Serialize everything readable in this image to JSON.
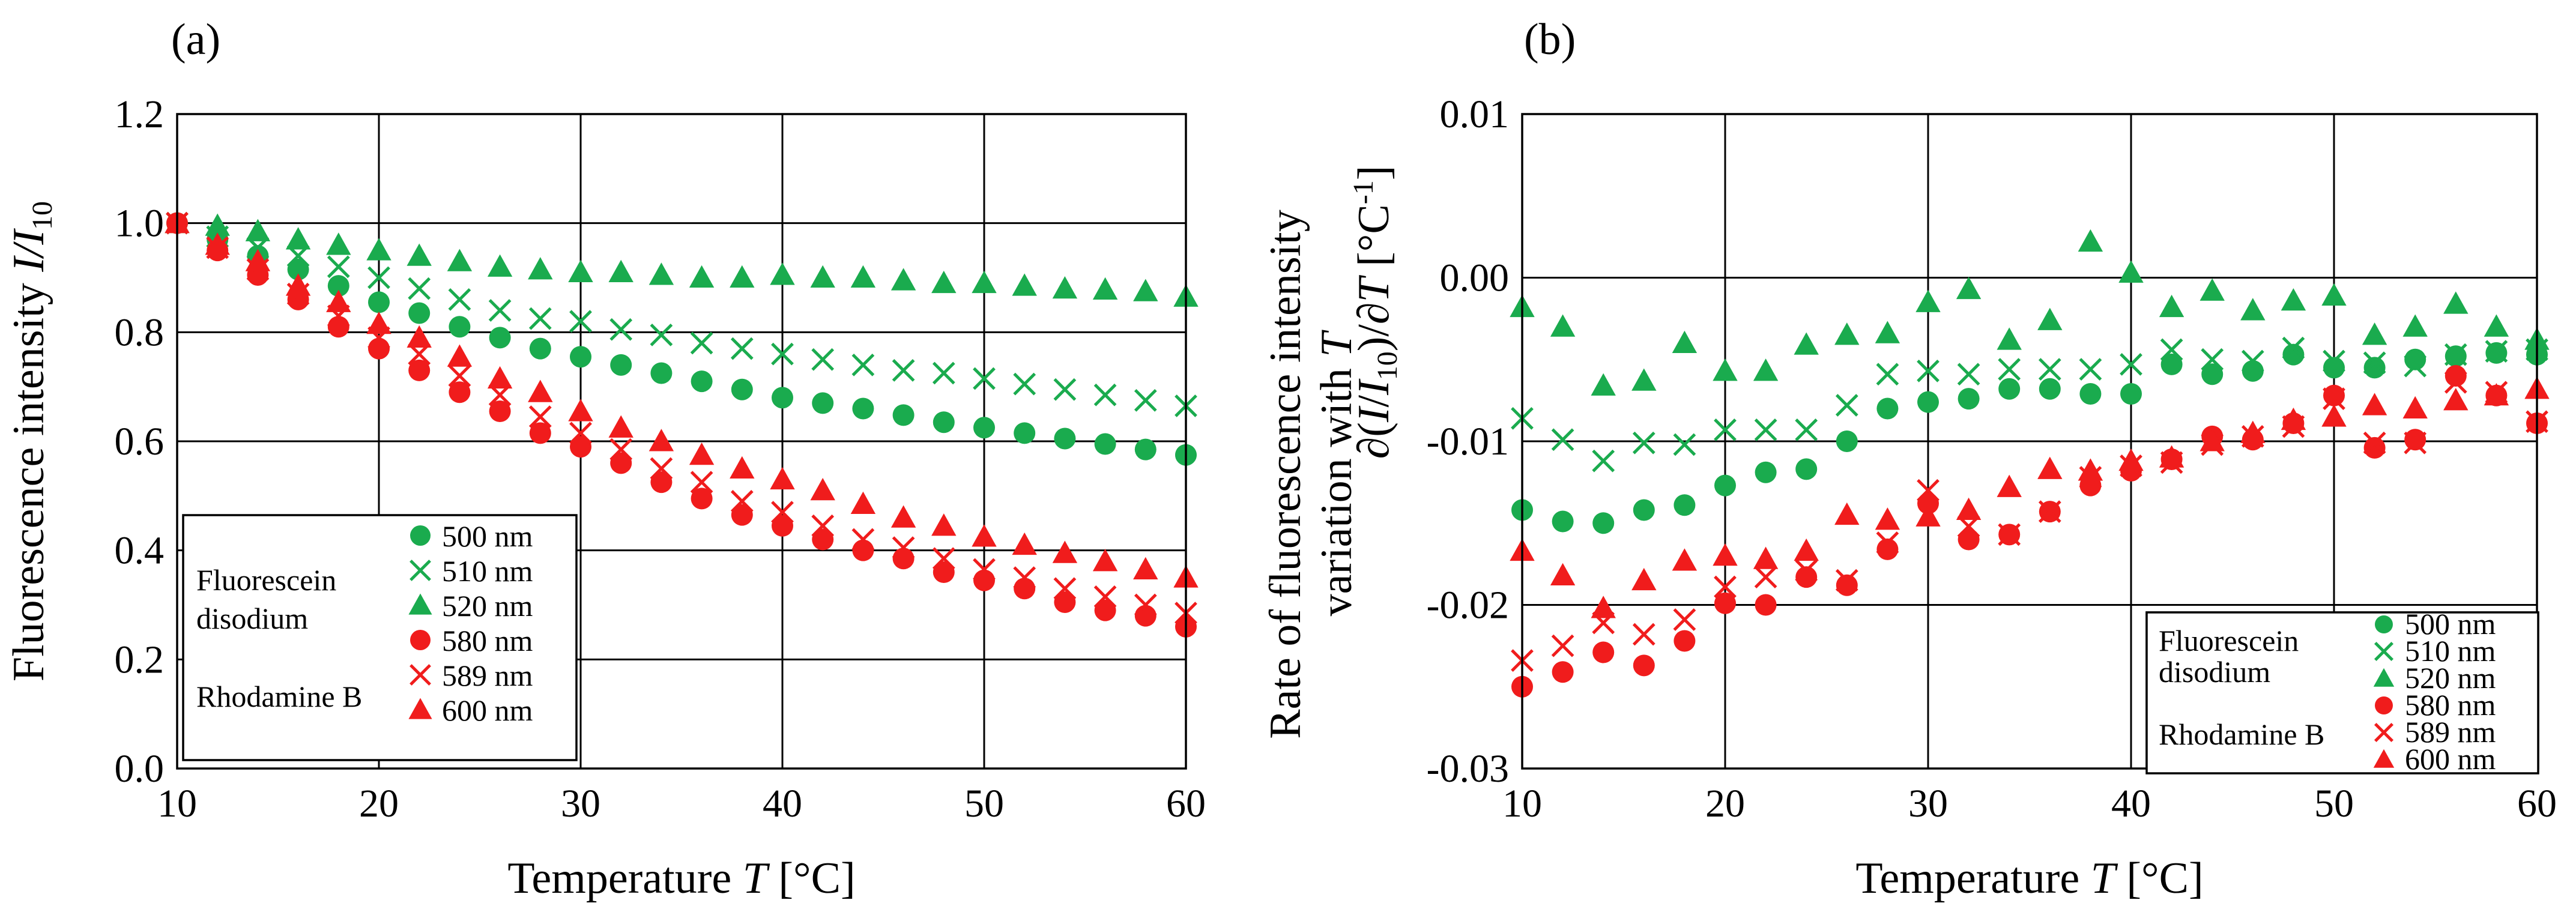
{
  "colors": {
    "fluorescein": "#1aab4e",
    "rhodamine": "#f01c1c",
    "grid": "#000000",
    "axis": "#000000"
  },
  "chart_data": [
    {
      "type": "scatter",
      "panel_label": "(a)",
      "xlabel": "Temperature",
      "xsym": "T",
      "xunit": "[°C]",
      "ylabel": "Fluorescence intensity",
      "ysym": "I/I",
      "ysub": "10",
      "xlim": [
        10,
        60
      ],
      "ylim": [
        0,
        1.2
      ],
      "xticks": [
        "10",
        "20",
        "30",
        "40",
        "50",
        "60"
      ],
      "yticks": [
        "0.0",
        "0.2",
        "0.4",
        "0.6",
        "0.8",
        "1.0",
        "1.2"
      ],
      "legend": {
        "position": "bottom-left",
        "groups": [
          {
            "name": "Fluorescein disodium",
            "lines": [
              "Fluorescein",
              "disodium"
            ]
          },
          {
            "name": "Rhodamine B",
            "lines": [
              "Rhodamine B"
            ]
          }
        ],
        "entries": [
          "500 nm",
          "510 nm",
          "520 nm",
          "580 nm",
          "589 nm",
          "600 nm"
        ]
      },
      "x": [
        10,
        12,
        14,
        16,
        18,
        20,
        22,
        24,
        26,
        28,
        30,
        32,
        34,
        36,
        38,
        40,
        42,
        44,
        46,
        48,
        50,
        52,
        54,
        56,
        58,
        60
      ],
      "series": [
        {
          "name": "500 nm",
          "group": "Fluorescein disodium",
          "marker": "circle",
          "color": "#1aab4e",
          "values": [
            1.0,
            0.97,
            0.94,
            0.915,
            0.885,
            0.855,
            0.835,
            0.81,
            0.79,
            0.77,
            0.755,
            0.74,
            0.725,
            0.71,
            0.695,
            0.68,
            0.67,
            0.66,
            0.648,
            0.635,
            0.625,
            0.615,
            0.605,
            0.595,
            0.585,
            0.575
          ]
        },
        {
          "name": "510 nm",
          "group": "Fluorescein disodium",
          "marker": "x",
          "color": "#1aab4e",
          "values": [
            1.0,
            0.975,
            0.955,
            0.94,
            0.92,
            0.9,
            0.88,
            0.86,
            0.84,
            0.825,
            0.82,
            0.805,
            0.795,
            0.78,
            0.77,
            0.76,
            0.75,
            0.74,
            0.73,
            0.725,
            0.715,
            0.705,
            0.695,
            0.685,
            0.675,
            0.665
          ]
        },
        {
          "name": "520 nm",
          "group": "Fluorescein disodium",
          "marker": "triangle",
          "color": "#1aab4e",
          "values": [
            1.0,
            0.995,
            0.985,
            0.97,
            0.96,
            0.95,
            0.94,
            0.93,
            0.92,
            0.915,
            0.91,
            0.91,
            0.905,
            0.9,
            0.9,
            0.905,
            0.9,
            0.9,
            0.895,
            0.89,
            0.89,
            0.885,
            0.88,
            0.878,
            0.875,
            0.865
          ]
        },
        {
          "name": "580 nm",
          "group": "Rhodamine B",
          "marker": "circle",
          "color": "#f01c1c",
          "values": [
            1.0,
            0.95,
            0.905,
            0.86,
            0.81,
            0.77,
            0.73,
            0.69,
            0.655,
            0.615,
            0.59,
            0.56,
            0.525,
            0.495,
            0.465,
            0.445,
            0.42,
            0.4,
            0.385,
            0.36,
            0.345,
            0.33,
            0.305,
            0.29,
            0.28,
            0.26
          ]
        },
        {
          "name": "589 nm",
          "group": "Rhodamine B",
          "marker": "x",
          "color": "#f01c1c",
          "values": [
            1.0,
            0.955,
            0.915,
            0.87,
            0.83,
            0.79,
            0.76,
            0.72,
            0.685,
            0.645,
            0.615,
            0.585,
            0.55,
            0.525,
            0.49,
            0.47,
            0.445,
            0.42,
            0.405,
            0.385,
            0.365,
            0.35,
            0.33,
            0.315,
            0.3,
            0.285
          ]
        },
        {
          "name": "600 nm",
          "group": "Rhodamine B",
          "marker": "triangle",
          "color": "#f01c1c",
          "values": [
            1.0,
            0.96,
            0.93,
            0.885,
            0.855,
            0.815,
            0.79,
            0.755,
            0.715,
            0.69,
            0.655,
            0.625,
            0.6,
            0.575,
            0.55,
            0.53,
            0.51,
            0.485,
            0.46,
            0.445,
            0.425,
            0.41,
            0.395,
            0.38,
            0.365,
            0.35
          ]
        }
      ]
    },
    {
      "type": "scatter",
      "panel_label": "(b)",
      "xlabel": "Temperature",
      "xsym": "T",
      "xunit": "[°C]",
      "ylabel_line1": "Rate of fluorescence intensity",
      "ylabel_line2_prefix": "variation with",
      "ylabel_line2_sym": "T",
      "yformula_pre": "∂(",
      "yformula_I": "I",
      "yformula_slash": "/",
      "yformula_I2": "I",
      "yformula_sub": "10",
      "yformula_mid": ")/∂",
      "yformula_T": "T",
      "yformula_unit": "[°C",
      "yformula_sup": "-1",
      "yformula_close": "]",
      "xlim": [
        10,
        60
      ],
      "ylim": [
        -0.03,
        0.01
      ],
      "xticks": [
        "10",
        "20",
        "30",
        "40",
        "50",
        "60"
      ],
      "yticks": [
        "-0.03",
        "-0.02",
        "-0.01",
        "0.00",
        "0.01"
      ],
      "legend": {
        "position": "bottom-right",
        "groups": [
          {
            "name": "Fluorescein disodium",
            "lines": [
              "Fluorescein",
              "disodium"
            ]
          },
          {
            "name": "Rhodamine B",
            "lines": [
              "Rhodamine B"
            ]
          }
        ],
        "entries": [
          "500 nm",
          "510 nm",
          "520 nm",
          "580 nm",
          "589 nm",
          "600 nm"
        ]
      },
      "x": [
        10,
        12,
        14,
        16,
        18,
        20,
        22,
        24,
        26,
        28,
        30,
        32,
        34,
        36,
        38,
        40,
        42,
        44,
        46,
        48,
        50,
        52,
        54,
        56,
        58,
        60
      ],
      "series": [
        {
          "name": "500 nm",
          "group": "Fluorescein disodium",
          "marker": "circle",
          "color": "#1aab4e",
          "values": [
            -0.0142,
            -0.0149,
            -0.015,
            -0.0142,
            -0.0139,
            -0.0127,
            -0.0119,
            -0.0117,
            -0.01,
            -0.008,
            -0.0076,
            -0.0074,
            -0.0068,
            -0.0068,
            -0.0071,
            -0.0071,
            -0.0053,
            -0.0059,
            -0.0057,
            -0.0047,
            -0.0055,
            -0.0055,
            -0.005,
            -0.0048,
            -0.0046,
            -0.0047
          ]
        },
        {
          "name": "510 nm",
          "group": "Fluorescein disodium",
          "marker": "x",
          "color": "#1aab4e",
          "values": [
            -0.0086,
            -0.0099,
            -0.0112,
            -0.0101,
            -0.0102,
            -0.0093,
            -0.0093,
            -0.0093,
            -0.0078,
            -0.0059,
            -0.0057,
            -0.0059,
            -0.0056,
            -0.0056,
            -0.0056,
            -0.0053,
            -0.0044,
            -0.005,
            -0.0051,
            -0.0043,
            -0.0051,
            -0.0052,
            -0.0054,
            -0.0047,
            -0.0045,
            -0.0044
          ]
        },
        {
          "name": "520 nm",
          "group": "Fluorescein disodium",
          "marker": "triangle",
          "color": "#1aab4e",
          "values": [
            -0.0018,
            -0.003,
            -0.0066,
            -0.0063,
            -0.004,
            -0.0057,
            -0.0057,
            -0.0041,
            -0.0035,
            -0.0034,
            -0.0015,
            -0.0007,
            -0.0038,
            -0.0026,
            0.0022,
            0.0003,
            -0.0018,
            -0.0008,
            -0.002,
            -0.0014,
            -0.0011,
            -0.0035,
            -0.003,
            -0.0016,
            -0.003,
            -0.0038
          ]
        },
        {
          "name": "580 nm",
          "group": "Rhodamine B",
          "marker": "circle",
          "color": "#f01c1c",
          "values": [
            -0.025,
            -0.0241,
            -0.0229,
            -0.0237,
            -0.0222,
            -0.0199,
            -0.02,
            -0.0183,
            -0.0188,
            -0.0166,
            -0.0138,
            -0.016,
            -0.0157,
            -0.0143,
            -0.0127,
            -0.0118,
            -0.0111,
            -0.0097,
            -0.0099,
            -0.0089,
            -0.0072,
            -0.0104,
            -0.0099,
            -0.006,
            -0.0072,
            -0.0089
          ]
        },
        {
          "name": "589 nm",
          "group": "Rhodamine B",
          "marker": "x",
          "color": "#f01c1c",
          "values": [
            -0.0234,
            -0.0225,
            -0.0211,
            -0.0218,
            -0.0209,
            -0.0189,
            -0.0183,
            -0.0179,
            -0.0185,
            -0.0162,
            -0.013,
            -0.0152,
            -0.0157,
            -0.0143,
            -0.0122,
            -0.0115,
            -0.0113,
            -0.0102,
            -0.0097,
            -0.0091,
            -0.0074,
            -0.0101,
            -0.0101,
            -0.0064,
            -0.007,
            -0.0088
          ]
        },
        {
          "name": "600 nm",
          "group": "Rhodamine B",
          "marker": "triangle",
          "color": "#f01c1c",
          "values": [
            -0.0167,
            -0.0182,
            -0.0202,
            -0.0185,
            -0.0173,
            -0.017,
            -0.0172,
            -0.0167,
            -0.0145,
            -0.0148,
            -0.0146,
            -0.0142,
            -0.0128,
            -0.0117,
            -0.0118,
            -0.0112,
            -0.011,
            -0.01,
            -0.0095,
            -0.0087,
            -0.0085,
            -0.0078,
            -0.008,
            -0.0075,
            -0.0072,
            -0.0068
          ]
        }
      ]
    }
  ]
}
